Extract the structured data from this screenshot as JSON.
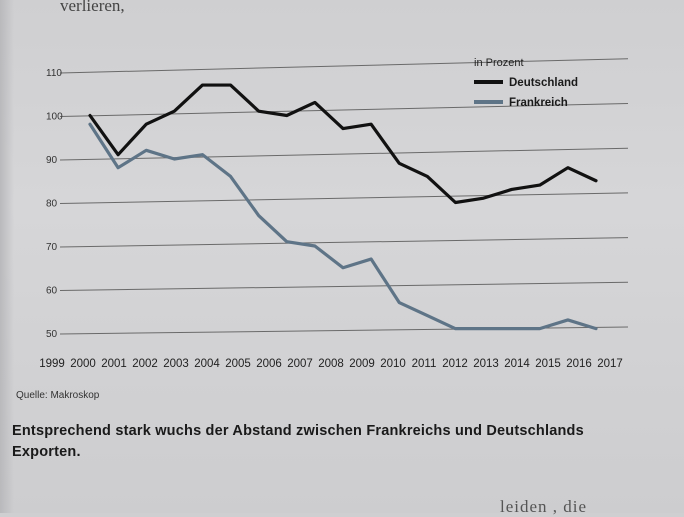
{
  "page": {
    "top_fragment": "verlieren,",
    "bottom_fragment": "leiden , die",
    "source": "Quelle: Makroskop",
    "caption": "Entsprechend stark wuchs der Abstand zwischen Frankreichs und Deutschlands Exporten."
  },
  "chart_data": {
    "type": "line",
    "legend_title": "in Prozent",
    "legend_position": "top-right",
    "x": [
      1999,
      2000,
      2001,
      2002,
      2003,
      2004,
      2005,
      2006,
      2007,
      2008,
      2009,
      2010,
      2011,
      2012,
      2013,
      2014,
      2015,
      2016,
      2017
    ],
    "ylim": [
      50,
      110
    ],
    "yticks": [
      50,
      60,
      70,
      80,
      90,
      100,
      110
    ],
    "grid": true,
    "series": [
      {
        "name": "Deutschland",
        "color": "#111111",
        "values": [
          100,
          91,
          98,
          101,
          107,
          107,
          101,
          100,
          103,
          97,
          98,
          89,
          86,
          80,
          81,
          83,
          84,
          88,
          85
        ]
      },
      {
        "name": "Frankreich",
        "color": "#5e7487",
        "values": [
          98,
          88,
          92,
          90,
          91,
          86,
          77,
          71,
          70,
          65,
          67,
          57,
          54,
          51,
          51,
          51,
          51,
          53,
          51
        ]
      }
    ]
  }
}
